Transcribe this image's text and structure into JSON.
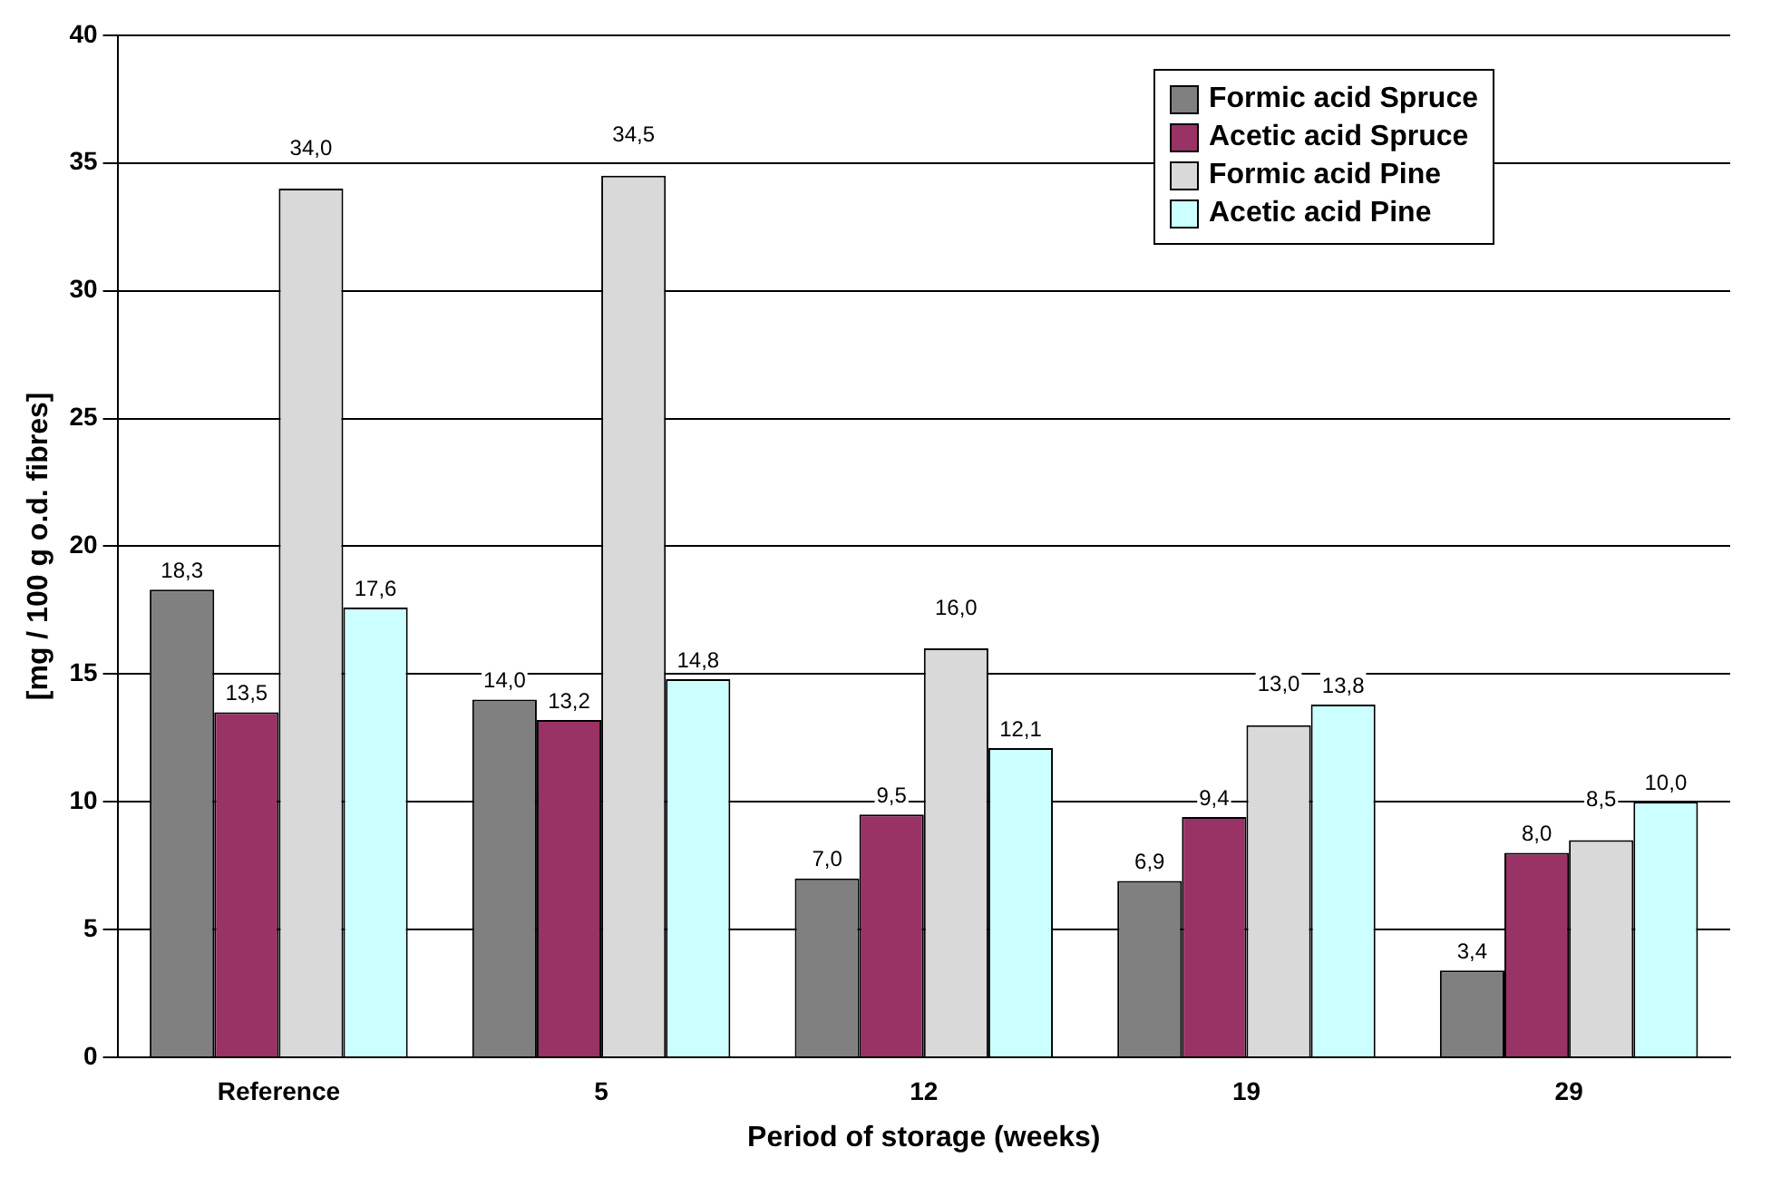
{
  "chart_data": {
    "type": "bar",
    "xlabel": "Period of storage (weeks)",
    "ylabel": "[mg / 100 g o.d. fibres]",
    "categories": [
      "Reference",
      "5",
      "12",
      "19",
      "29"
    ],
    "ylim": [
      0,
      40
    ],
    "yticks": [
      0,
      5,
      10,
      15,
      20,
      25,
      30,
      35,
      40
    ],
    "grid": "y",
    "legend": "top right",
    "series": [
      {
        "name": "Formic acid Spruce",
        "color": "#808080",
        "values": [
          18.3,
          14.0,
          7.0,
          6.9,
          3.4
        ],
        "value_labels": [
          "18,3",
          "14,0",
          "7,0",
          "6,9",
          "3,4"
        ]
      },
      {
        "name": "Acetic acid Spruce",
        "color": "#993366",
        "values": [
          13.5,
          13.2,
          9.5,
          9.4,
          8.0
        ],
        "value_labels": [
          "13,5",
          "13,2",
          "9,5",
          "9,4",
          "8,0"
        ]
      },
      {
        "name": "Formic acid Pine",
        "color": "#d9d9d9",
        "values": [
          34.0,
          34.5,
          16.0,
          13.0,
          8.5
        ],
        "value_labels": [
          "34,0",
          "34,5",
          "16,0",
          "13,0",
          "8,5"
        ]
      },
      {
        "name": "Acetic acid Pine",
        "color": "#ccffff",
        "values": [
          17.6,
          14.8,
          12.1,
          13.8,
          10.0
        ],
        "value_labels": [
          "17,6",
          "14,8",
          "12,1",
          "13,8",
          "10,0"
        ]
      }
    ]
  }
}
